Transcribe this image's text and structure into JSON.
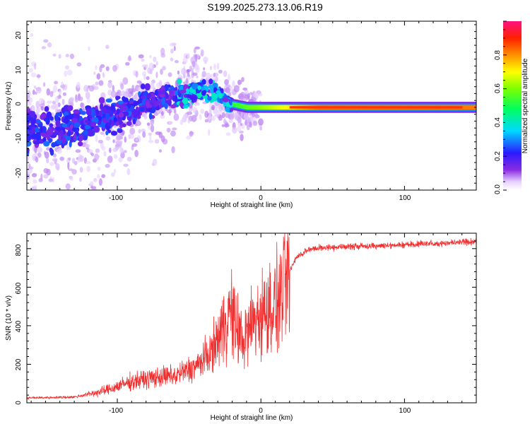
{
  "title": "S199.2025.273.13.06.R19",
  "chart_data": [
    {
      "type": "heatmap",
      "xlabel": "Height of straight line (km)",
      "ylabel": "Frequency (Hz)",
      "xlim": [
        -163,
        150
      ],
      "ylim": [
        -25,
        24
      ],
      "xticks": [
        "-100",
        "0",
        "100"
      ],
      "yticks": [
        "-20",
        "-10",
        "0",
        "10",
        "20"
      ],
      "colorbar": {
        "label": "Normalized spectral amplitude",
        "range": [
          0,
          1
        ],
        "ticks": [
          "0.0",
          "0.2",
          "0.4",
          "0.6",
          "0.8"
        ]
      },
      "ridge": [
        {
          "x": -163,
          "f": -8
        },
        {
          "x": -130,
          "f": -7
        },
        {
          "x": -100,
          "f": -3
        },
        {
          "x": -75,
          "f": 1
        },
        {
          "x": -55,
          "f": 2.5
        },
        {
          "x": -40,
          "f": 4
        },
        {
          "x": -30,
          "f": 3
        },
        {
          "x": -22,
          "f": 0
        },
        {
          "x": -10,
          "f": -1
        },
        {
          "x": 0,
          "f": -1
        },
        {
          "x": 20,
          "f": -1
        },
        {
          "x": 150,
          "f": -1
        }
      ]
    },
    {
      "type": "line",
      "xlabel": "Height of straight line (km)",
      "ylabel": "SNR (10 * v/v)",
      "xlim": [
        -163,
        150
      ],
      "ylim": [
        0,
        880
      ],
      "xticks": [
        "-100",
        "0",
        "100"
      ],
      "yticks": [
        "0",
        "200",
        "400",
        "600",
        "800"
      ],
      "color": "#f03030",
      "trend": [
        {
          "x": -163,
          "y": 25
        },
        {
          "x": -130,
          "y": 30
        },
        {
          "x": -110,
          "y": 60
        },
        {
          "x": -90,
          "y": 110
        },
        {
          "x": -75,
          "y": 130
        },
        {
          "x": -60,
          "y": 140
        },
        {
          "x": -45,
          "y": 190
        },
        {
          "x": -35,
          "y": 260
        },
        {
          "x": -27,
          "y": 380
        },
        {
          "x": -22,
          "y": 480
        },
        {
          "x": -18,
          "y": 400
        },
        {
          "x": -12,
          "y": 320
        },
        {
          "x": -5,
          "y": 430
        },
        {
          "x": 5,
          "y": 480
        },
        {
          "x": 12,
          "y": 520
        },
        {
          "x": 18,
          "y": 650
        },
        {
          "x": 25,
          "y": 760
        },
        {
          "x": 35,
          "y": 800
        },
        {
          "x": 60,
          "y": 810
        },
        {
          "x": 100,
          "y": 820
        },
        {
          "x": 150,
          "y": 835
        }
      ]
    }
  ]
}
